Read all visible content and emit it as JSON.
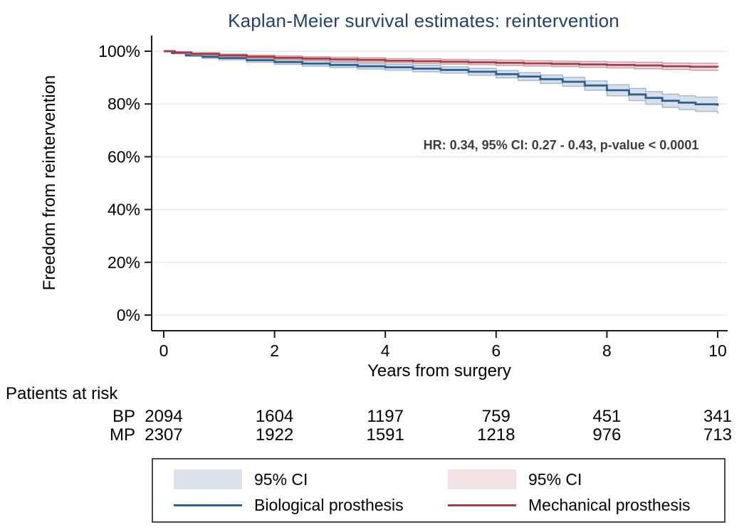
{
  "title": "Kaplan-Meier survival estimates: reintervention",
  "annotation": "HR: 0.34, 95% CI: 0.27 - 0.43, p-value < 0.0001",
  "axes": {
    "y_label": "Freedom from reintervention",
    "x_label": "Years from surgery"
  },
  "risk_table": {
    "header": "Patients at risk",
    "rows": [
      {
        "label": "BP",
        "values": [
          "2094",
          "1604",
          "1197",
          "759",
          "451",
          "341"
        ]
      },
      {
        "label": "MP",
        "values": [
          "2307",
          "1922",
          "1591",
          "1218",
          "976",
          "713"
        ]
      }
    ]
  },
  "legend": {
    "items": [
      {
        "type": "band",
        "label": "95% CI",
        "color": "#dbe2ec"
      },
      {
        "type": "band",
        "label": "95% CI",
        "color": "#f2e2e4"
      },
      {
        "type": "line",
        "label": "Biological prosthesis",
        "color": "#2f5f8c"
      },
      {
        "type": "line",
        "label": "Mechanical prosthesis",
        "color": "#9e3f4a"
      }
    ]
  },
  "colors": {
    "title": "#24406d",
    "gridline": "#e6efee",
    "axis": "#1a1a1a",
    "annotation_text": "#3c3c3c"
  },
  "chart_data": {
    "type": "line",
    "subtype": "kaplan-meier-step",
    "title": "Kaplan-Meier survival estimates: reintervention",
    "xlabel": "Years from surgery",
    "ylabel": "Freedom from reintervention",
    "xlim": [
      0,
      10
    ],
    "ylim": [
      0,
      100
    ],
    "x_ticks": [
      0,
      2,
      4,
      6,
      8,
      10
    ],
    "y_ticks": [
      0,
      20,
      40,
      60,
      80,
      100
    ],
    "y_tick_labels": [
      "0%",
      "20%",
      "40%",
      "60%",
      "80%",
      "100%"
    ],
    "grid": "horizontal",
    "legend_position": "bottom",
    "annotation": "HR: 0.34, 95% CI: 0.27 - 0.43, p-value < 0.0001",
    "series": [
      {
        "name": "Biological prosthesis",
        "short_label": "BP",
        "color": "#2f5f8c",
        "ci_fill": "#d4dde9",
        "ci_edge": "#a3b6cd",
        "points_t_est_lo_hi": [
          [
            0,
            100,
            100,
            100
          ],
          [
            0.15,
            99.3,
            99.0,
            99.6
          ],
          [
            0.4,
            98.5,
            98.0,
            99.0
          ],
          [
            0.7,
            97.9,
            97.3,
            98.5
          ],
          [
            1,
            97.4,
            96.7,
            98.1
          ],
          [
            1.5,
            96.6,
            95.8,
            97.4
          ],
          [
            2,
            95.9,
            95.0,
            96.8
          ],
          [
            2.5,
            95.3,
            94.3,
            96.3
          ],
          [
            3,
            94.8,
            93.8,
            95.8
          ],
          [
            3.5,
            94.3,
            93.2,
            95.4
          ],
          [
            4,
            93.9,
            92.8,
            95.0
          ],
          [
            4.5,
            93.4,
            92.2,
            94.6
          ],
          [
            5,
            92.9,
            91.7,
            94.1
          ],
          [
            5.5,
            92.2,
            90.9,
            93.5
          ],
          [
            6,
            91.3,
            89.9,
            92.7
          ],
          [
            6.4,
            90.4,
            88.9,
            91.9
          ],
          [
            6.8,
            89.4,
            87.8,
            91.0
          ],
          [
            7.2,
            88.4,
            86.7,
            90.1
          ],
          [
            7.6,
            87.0,
            85.2,
            88.8
          ],
          [
            8,
            85.2,
            83.1,
            87.3
          ],
          [
            8.4,
            83.6,
            81.3,
            85.9
          ],
          [
            8.7,
            82.3,
            79.9,
            84.7
          ],
          [
            9,
            81.2,
            78.7,
            83.7
          ],
          [
            9.3,
            80.5,
            77.9,
            83.1
          ],
          [
            9.6,
            79.9,
            77.2,
            82.6
          ],
          [
            10,
            79.3,
            76.2,
            82.4
          ]
        ],
        "at_risk": [
          2094,
          1604,
          1197,
          759,
          451,
          341
        ]
      },
      {
        "name": "Mechanical prosthesis",
        "short_label": "MP",
        "color": "#9e3f4a",
        "ci_fill": "#efdde0",
        "ci_edge": "#cc959c",
        "points_t_est_lo_hi": [
          [
            0,
            100,
            100,
            100
          ],
          [
            0.2,
            99.5,
            99.2,
            99.8
          ],
          [
            0.5,
            99.0,
            98.6,
            99.4
          ],
          [
            1,
            98.4,
            97.9,
            98.9
          ],
          [
            1.5,
            97.9,
            97.3,
            98.5
          ],
          [
            2,
            97.5,
            96.8,
            98.2
          ],
          [
            2.5,
            97.2,
            96.5,
            97.9
          ],
          [
            3,
            96.9,
            96.1,
            97.7
          ],
          [
            3.5,
            96.7,
            95.9,
            97.5
          ],
          [
            4,
            96.4,
            95.6,
            97.2
          ],
          [
            4.5,
            96.2,
            95.3,
            97.1
          ],
          [
            5,
            96.0,
            95.1,
            96.9
          ],
          [
            5.5,
            95.8,
            94.9,
            96.7
          ],
          [
            6,
            95.6,
            94.6,
            96.6
          ],
          [
            6.5,
            95.4,
            94.4,
            96.4
          ],
          [
            7,
            95.2,
            94.2,
            96.2
          ],
          [
            7.5,
            95.0,
            93.9,
            96.1
          ],
          [
            8,
            94.8,
            93.7,
            95.9
          ],
          [
            8.5,
            94.6,
            93.4,
            95.8
          ],
          [
            9,
            94.3,
            93.1,
            95.5
          ],
          [
            9.5,
            94.1,
            92.8,
            95.4
          ],
          [
            10,
            93.9,
            92.5,
            95.3
          ]
        ],
        "at_risk": [
          2307,
          1922,
          1591,
          1218,
          976,
          713
        ]
      }
    ]
  }
}
